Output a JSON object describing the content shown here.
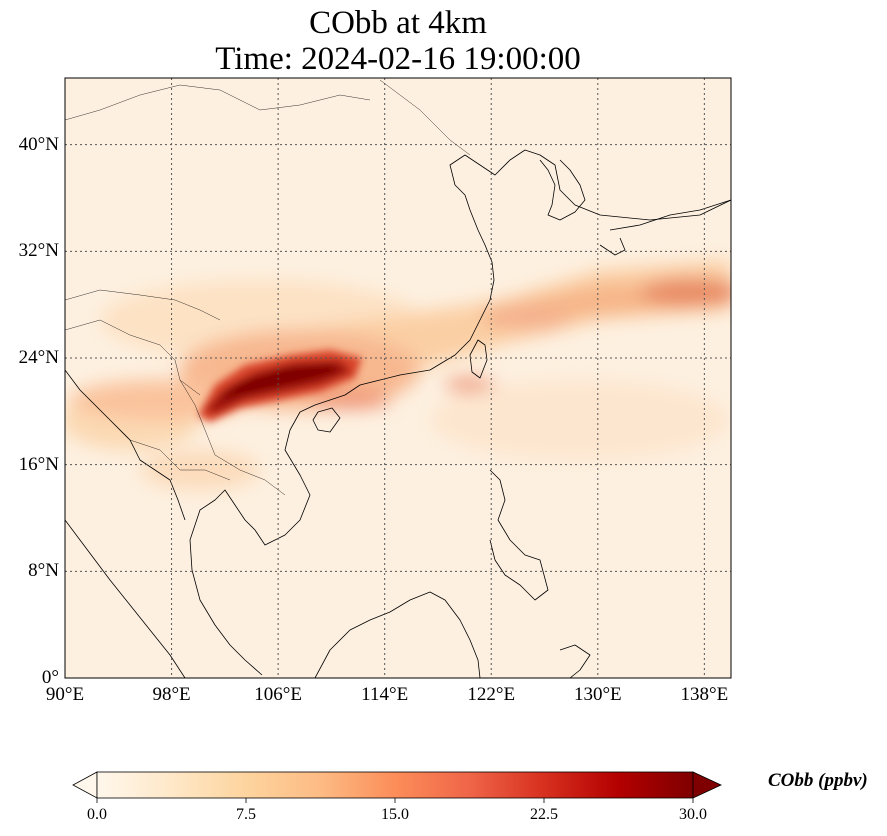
{
  "title": {
    "line1": "CObb at 4km",
    "line2": "Time: 2024-02-16 19:00:00"
  },
  "map": {
    "projection": "PlateCarree",
    "lon_range": [
      90,
      140
    ],
    "lat_range": [
      0,
      45
    ],
    "gridlines": "dotted",
    "lon_ticks": [
      {
        "value": 90,
        "label": "90°E"
      },
      {
        "value": 98,
        "label": "98°E"
      },
      {
        "value": 106,
        "label": "106°E"
      },
      {
        "value": 114,
        "label": "114°E"
      },
      {
        "value": 122,
        "label": "122°E"
      },
      {
        "value": 130,
        "label": "130°E"
      },
      {
        "value": 138,
        "label": "138°E"
      }
    ],
    "lat_ticks": [
      {
        "value": 0,
        "label": "0°"
      },
      {
        "value": 8,
        "label": "8°N"
      },
      {
        "value": 16,
        "label": "16°N"
      },
      {
        "value": 24,
        "label": "24°N"
      },
      {
        "value": 32,
        "label": "32°N"
      },
      {
        "value": 40,
        "label": "40°N"
      }
    ],
    "field_color_max": "#7f0000",
    "field_color_min": "#fff7ec"
  },
  "colorbar": {
    "label": "CObb (ppbv)",
    "min": 0.0,
    "max": 30.0,
    "extend": "both",
    "ticks": [
      "0.0",
      "7.5",
      "15.0",
      "22.5",
      "30.0"
    ],
    "colors": [
      "#fff7ec",
      "#fee8c8",
      "#fdd49e",
      "#fdbb84",
      "#fc8d59",
      "#ef6548",
      "#d7301f",
      "#b30000",
      "#7f0000"
    ]
  }
}
